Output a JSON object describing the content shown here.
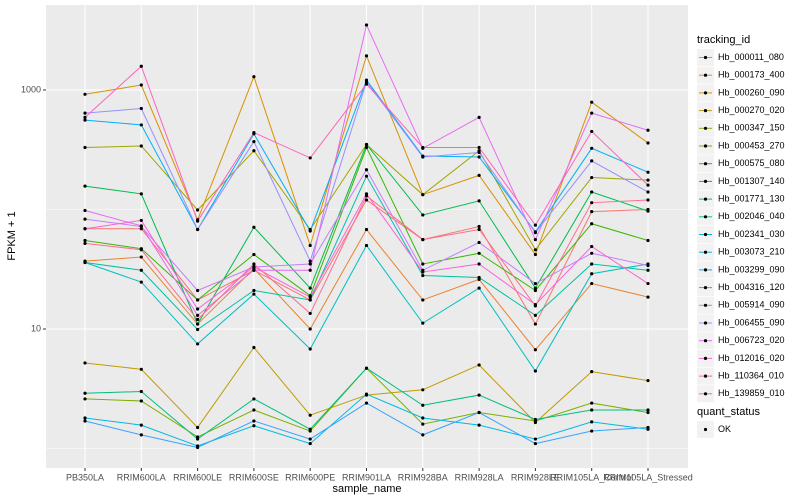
{
  "chart_data": {
    "type": "line",
    "x_label": "sample_name",
    "y_label": "FPKM + 1",
    "legend_title": "tracking_id",
    "shape_legend": {
      "title": "quant_status",
      "labels": [
        "OK"
      ]
    },
    "ylog": true,
    "grid": true,
    "ylim": [
      0.687,
      5140
    ],
    "yticks": [
      10,
      1000
    ],
    "y_minor_grid": [
      1,
      100
    ],
    "categories": [
      "PB350LA",
      "RRIM600LA",
      "RRIM600LE",
      "RRIM600SE",
      "RRIM600PE",
      "RRIM901LA",
      "RRIM928BA",
      "RRIM928LA",
      "RRIM928LE",
      "RRIM105LA_Control",
      "RRIM105LA_Stressed"
    ],
    "series": [
      {
        "name": "Hb_000011_080",
        "color": "#F8766D",
        "values": [
          69,
          69,
          17.5,
          31,
          17.5,
          120,
          56,
          72,
          11,
          96,
          100
        ]
      },
      {
        "name": "Hb_000173_400",
        "color": "#EA8331",
        "values": [
          37,
          40,
          11,
          32,
          10,
          68,
          17.5,
          26,
          6.7,
          24,
          18.5
        ]
      },
      {
        "name": "Hb_000260_090",
        "color": "#D89000",
        "values": [
          920,
          1100,
          82,
          1290,
          50,
          1930,
          133,
          193,
          42,
          790,
          360
        ]
      },
      {
        "name": "Hb_000270_020",
        "color": "#C09B00",
        "values": [
          5.2,
          4.6,
          1.5,
          7,
          1.9,
          2.8,
          3.1,
          5,
          1.65,
          4.4,
          3.7
        ]
      },
      {
        "name": "Hb_000347_150",
        "color": "#A3A500",
        "values": [
          330,
          340,
          99,
          310,
          68,
          350,
          133,
          310,
          46,
          185,
          176
        ]
      },
      {
        "name": "Hb_000453_270",
        "color": "#7CAE00",
        "values": [
          2.6,
          2.5,
          1.25,
          2.1,
          1.4,
          4.7,
          1.6,
          2,
          1.7,
          2.4,
          2
        ]
      },
      {
        "name": "Hb_000575_080",
        "color": "#39B600",
        "values": [
          55,
          47,
          17.5,
          42,
          19,
          330,
          35,
          43,
          21,
          76,
          55
        ]
      },
      {
        "name": "Hb_001307_140",
        "color": "#00BB4E",
        "values": [
          157,
          135,
          11,
          71,
          22,
          350,
          90,
          118,
          22,
          140,
          97
        ]
      },
      {
        "name": "Hb_001771_130",
        "color": "#00BF7D",
        "values": [
          2.9,
          3,
          1.2,
          2.6,
          1.45,
          4.7,
          2.3,
          2.8,
          1.75,
          2.1,
          2.1
        ]
      },
      {
        "name": "Hb_002046_040",
        "color": "#00C1A3",
        "values": [
          36,
          31,
          9.9,
          21,
          17.5,
          190,
          28,
          27,
          13,
          35,
          31
        ]
      },
      {
        "name": "Hb_002341_030",
        "color": "#00BFC4",
        "values": [
          36,
          24.7,
          7.5,
          19.6,
          6.8,
          50,
          11.2,
          22,
          4.45,
          29,
          35
        ]
      },
      {
        "name": "Hb_003073_210",
        "color": "#00BAE0",
        "values": [
          1.8,
          1.57,
          1.05,
          1.55,
          1.1,
          2.85,
          1.8,
          1.57,
          1.2,
          1.67,
          1.45
        ]
      },
      {
        "name": "Hb_003299_090",
        "color": "#00B0F6",
        "values": [
          560,
          510,
          68,
          430,
          66,
          1210,
          280,
          275,
          65,
          325,
          205
        ]
      },
      {
        "name": "Hb_004316_120",
        "color": "#35A2FF",
        "values": [
          1.7,
          1.3,
          1.02,
          1.7,
          1.2,
          2.4,
          1.3,
          2,
          1.1,
          1.4,
          1.5
        ]
      },
      {
        "name": "Hb_005914_090",
        "color": "#9590FF",
        "values": [
          640,
          700,
          68,
          370,
          37,
          1170,
          275,
          300,
          64,
          255,
          140
        ]
      },
      {
        "name": "Hb_006455_090",
        "color": "#C77CFF",
        "values": [
          83,
          72,
          21,
          33,
          35,
          215,
          31,
          53,
          24,
          43,
          34
        ]
      },
      {
        "name": "Hb_006723_020",
        "color": "#E76BF3",
        "values": [
          98,
          73,
          13,
          31,
          31,
          3500,
          325,
          590,
          56,
          640,
          460
        ]
      },
      {
        "name": "Hb_012016_020",
        "color": "#FA62DB",
        "values": [
          69,
          81,
          14.7,
          33,
          18.5,
          135,
          30,
          35,
          16,
          49,
          24
        ]
      },
      {
        "name": "Hb_110364_010",
        "color": "#FF62BC",
        "values": [
          590,
          1580,
          80,
          440,
          270,
          1120,
          330,
          330,
          74,
          450,
          160
        ]
      },
      {
        "name": "Hb_139859_010",
        "color": "#FF6C91",
        "values": [
          52,
          46,
          12,
          35,
          13.5,
          130,
          56,
          68,
          15.6,
          114,
          120
        ]
      }
    ]
  }
}
